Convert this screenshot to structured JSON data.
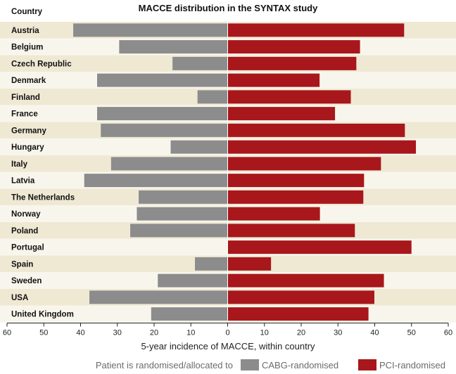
{
  "chart_data": {
    "type": "bar",
    "orientation": "horizontal-diverging",
    "title": "MACCE distribution in the SYNTAX study",
    "category_header": "Country",
    "xlabel": "5-year incidence of MACCE, within country",
    "xlim": [
      -60,
      60
    ],
    "xticks": [
      -60,
      -50,
      -40,
      -30,
      -20,
      -10,
      0,
      10,
      20,
      30,
      40,
      50,
      60
    ],
    "xtick_labels": [
      "60",
      "50",
      "40",
      "30",
      "20",
      "10",
      "0",
      "10",
      "20",
      "30",
      "40",
      "50",
      "60"
    ],
    "categories": [
      "Austria",
      "Belgium",
      "Czech Republic",
      "Denmark",
      "Finland",
      "France",
      "Germany",
      "Hungary",
      "Italy",
      "Latvia",
      "The Netherlands",
      "Norway",
      "Poland",
      "Portugal",
      "Spain",
      "Sweden",
      "USA",
      "United Kingdom"
    ],
    "series": [
      {
        "name": "CABG-randomised",
        "color": "#8c8c8c",
        "direction": "left",
        "values": [
          42,
          29.5,
          15,
          35.5,
          8.2,
          35.5,
          34.5,
          15.5,
          31.7,
          39,
          24.2,
          24.7,
          26.5,
          0,
          8.9,
          19,
          37.6,
          20.8
        ]
      },
      {
        "name": "PCI-randomised",
        "color": "#a8171b",
        "direction": "right",
        "values": [
          48,
          36,
          35,
          25,
          33.5,
          29.2,
          48.2,
          51.2,
          41.7,
          37.1,
          36.9,
          25.1,
          34.6,
          50,
          11.8,
          42.5,
          39.9,
          38.3
        ]
      }
    ],
    "legend": {
      "prefix": "Patient is randomised/allocated to",
      "placement": "bottom"
    },
    "row_band_colors": [
      "#efe9d4",
      "#f8f6ec"
    ],
    "grid": false
  }
}
